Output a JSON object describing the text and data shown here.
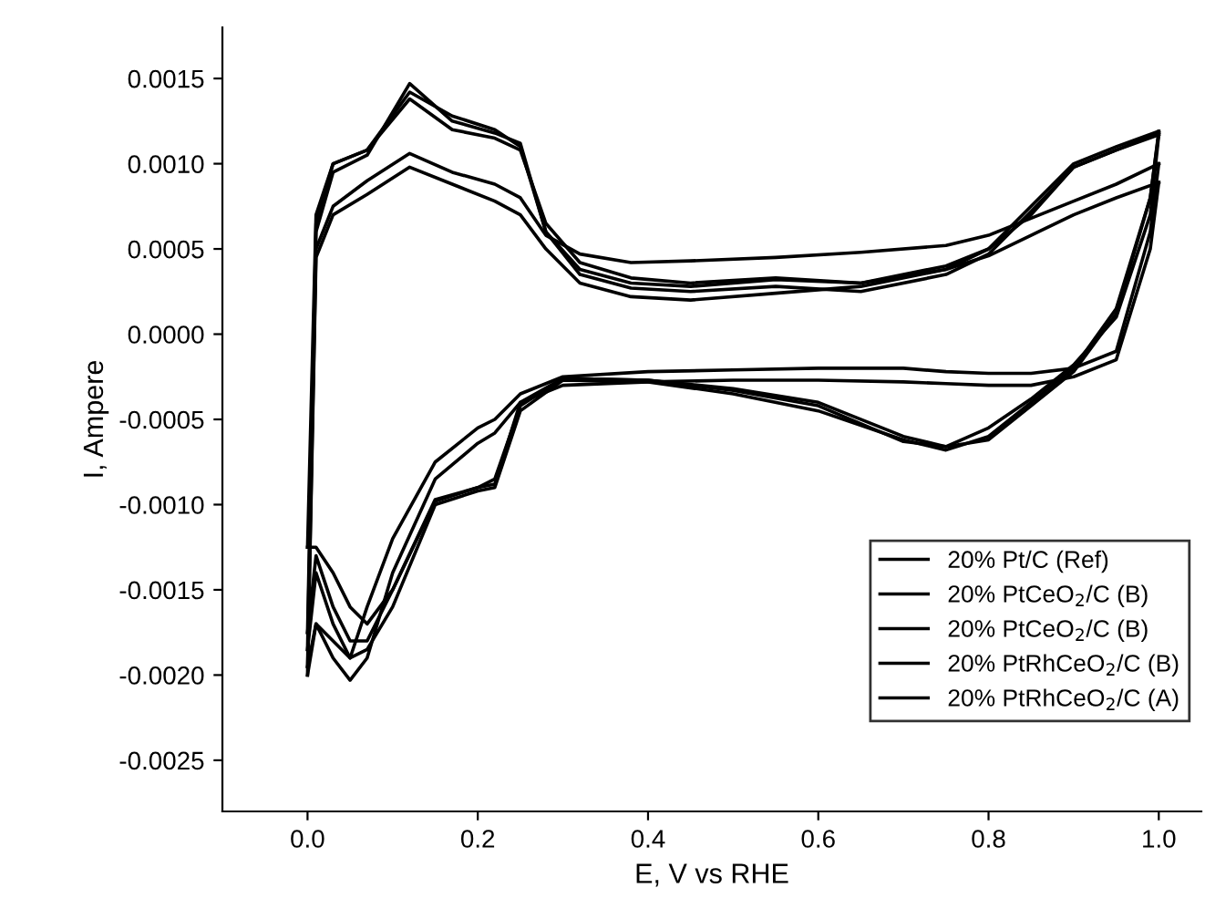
{
  "chart_data": {
    "type": "line",
    "xlabel": "E, V vs RHE",
    "ylabel": "I, Ampere",
    "xlim": [
      -0.1,
      1.05
    ],
    "ylim": [
      -0.0028,
      0.0018
    ],
    "xticks": [
      {
        "value": 0,
        "label": "0.0"
      },
      {
        "value": 0.2,
        "label": "0.2"
      },
      {
        "value": 0.4,
        "label": "0.4"
      },
      {
        "value": 0.6,
        "label": "0.6"
      },
      {
        "value": 0.8,
        "label": "0.8"
      },
      {
        "value": 1.0,
        "label": "1.0"
      }
    ],
    "yticks": [
      {
        "value": -0.0025,
        "label": "-0.0025"
      },
      {
        "value": -0.002,
        "label": "-0.0020"
      },
      {
        "value": -0.0015,
        "label": "-0.0015"
      },
      {
        "value": -0.001,
        "label": "-0.0010"
      },
      {
        "value": -0.0005,
        "label": "-0.0005"
      },
      {
        "value": 0,
        "label": "0.0000"
      },
      {
        "value": 0.0005,
        "label": "0.0005"
      },
      {
        "value": 0.001,
        "label": "0.0010"
      },
      {
        "value": 0.0015,
        "label": "0.0015"
      }
    ],
    "series": [
      {
        "name": "20% Pt/C (Ref)",
        "color": "#000000",
        "x": [
          0.0,
          0.01,
          0.03,
          0.07,
          0.12,
          0.17,
          0.22,
          0.25,
          0.28,
          0.32,
          0.38,
          0.45,
          0.55,
          0.65,
          0.75,
          0.8,
          0.85,
          0.9,
          0.95,
          1.0
        ],
        "values": [
          -0.00185,
          0.0006,
          0.00095,
          0.00105,
          0.00147,
          0.00125,
          0.00118,
          0.00112,
          0.0006,
          0.00035,
          0.00027,
          0.00025,
          0.00028,
          0.00025,
          0.00035,
          0.00047,
          0.00072,
          0.00098,
          0.00108,
          0.00118
        ]
      },
      {
        "color": "#000000",
        "x": [
          0.0,
          0.01,
          0.03,
          0.05,
          0.07,
          0.1,
          0.15,
          0.2,
          0.22,
          0.25,
          0.3,
          0.4,
          0.5,
          0.6,
          0.7,
          0.75,
          0.8,
          0.85,
          0.9,
          0.95,
          0.99,
          1.0
        ],
        "values": [
          -0.00185,
          -0.0014,
          -0.0017,
          -0.0019,
          -0.00185,
          -0.0016,
          -0.001,
          -0.00092,
          -0.0009,
          -0.00045,
          -0.00027,
          -0.00028,
          -0.00035,
          -0.00045,
          -0.00062,
          -0.00068,
          -0.0006,
          -0.0004,
          -0.0002,
          0.00015,
          0.0008,
          0.00118
        ]
      },
      {
        "name": "20% PtCeO$_{2}$/C (B)",
        "color": "#000000",
        "x": [
          0.0,
          0.01,
          0.03,
          0.07,
          0.12,
          0.17,
          0.22,
          0.25,
          0.28,
          0.32,
          0.38,
          0.45,
          0.55,
          0.65,
          0.75,
          0.8,
          0.85,
          0.9,
          0.95,
          1.0
        ],
        "values": [
          -0.00175,
          0.00065,
          0.001,
          0.00108,
          0.00142,
          0.00128,
          0.0012,
          0.0011,
          0.0006,
          0.00038,
          0.0003,
          0.00028,
          0.00032,
          0.0003,
          0.00038,
          0.0005,
          0.00075,
          0.001,
          0.0011,
          0.00119
        ]
      },
      {
        "color": "#000000",
        "x": [
          0.0,
          0.01,
          0.03,
          0.05,
          0.07,
          0.1,
          0.15,
          0.2,
          0.22,
          0.25,
          0.3,
          0.4,
          0.5,
          0.6,
          0.7,
          0.75,
          0.8,
          0.85,
          0.9,
          0.95,
          0.99,
          1.0
        ],
        "values": [
          -0.00175,
          -0.0013,
          -0.0016,
          -0.0018,
          -0.0018,
          -0.0015,
          -0.00098,
          -0.0009,
          -0.00088,
          -0.0004,
          -0.00026,
          -0.00027,
          -0.00032,
          -0.0004,
          -0.0006,
          -0.00066,
          -0.00062,
          -0.00042,
          -0.00022,
          0.00012,
          0.0008,
          0.00119
        ]
      },
      {
        "name": "20% PtCeO$_{2}$/C (B)",
        "color": "#000000",
        "x": [
          0.0,
          0.01,
          0.03,
          0.07,
          0.12,
          0.17,
          0.22,
          0.25,
          0.28,
          0.32,
          0.38,
          0.45,
          0.55,
          0.65,
          0.75,
          0.8,
          0.85,
          0.9,
          0.95,
          1.0
        ],
        "values": [
          -0.00195,
          0.0005,
          0.00075,
          0.0009,
          0.00106,
          0.00095,
          0.00088,
          0.0008,
          0.00058,
          0.00047,
          0.00042,
          0.00043,
          0.00045,
          0.00048,
          0.00052,
          0.00058,
          0.00068,
          0.00078,
          0.00088,
          0.001
        ]
      },
      {
        "color": "#000000",
        "x": [
          0.0,
          0.01,
          0.03,
          0.05,
          0.07,
          0.1,
          0.15,
          0.2,
          0.22,
          0.25,
          0.3,
          0.4,
          0.5,
          0.6,
          0.7,
          0.75,
          0.8,
          0.85,
          0.9,
          0.95,
          0.99,
          1.0
        ],
        "values": [
          -0.00195,
          -0.0017,
          -0.0018,
          -0.0019,
          -0.0016,
          -0.0012,
          -0.00075,
          -0.00055,
          -0.0005,
          -0.00035,
          -0.00025,
          -0.00022,
          -0.00021,
          -0.0002,
          -0.0002,
          -0.00022,
          -0.00023,
          -0.00023,
          -0.0002,
          -0.0001,
          0.0006,
          0.001
        ]
      },
      {
        "name": "20% PtRhCeO$_{2}$/C (B)",
        "color": "#000000",
        "x": [
          0.0,
          0.01,
          0.03,
          0.07,
          0.12,
          0.17,
          0.22,
          0.25,
          0.28,
          0.32,
          0.38,
          0.45,
          0.55,
          0.65,
          0.75,
          0.8,
          0.85,
          0.9,
          0.95,
          1.0
        ],
        "values": [
          -0.002,
          0.00045,
          0.0007,
          0.00082,
          0.00098,
          0.00088,
          0.00078,
          0.0007,
          0.0005,
          0.0003,
          0.00022,
          0.0002,
          0.00024,
          0.00028,
          0.00038,
          0.00046,
          0.00058,
          0.0007,
          0.0008,
          0.00089
        ]
      },
      {
        "color": "#000000",
        "x": [
          0.0,
          0.01,
          0.03,
          0.05,
          0.07,
          0.1,
          0.15,
          0.2,
          0.22,
          0.25,
          0.3,
          0.4,
          0.5,
          0.6,
          0.7,
          0.75,
          0.8,
          0.85,
          0.9,
          0.95,
          0.99,
          1.0
        ],
        "values": [
          -0.002,
          -0.0017,
          -0.0019,
          -0.00203,
          -0.0019,
          -0.0014,
          -0.00085,
          -0.00064,
          -0.00058,
          -0.0004,
          -0.0003,
          -0.00028,
          -0.00027,
          -0.00027,
          -0.00028,
          -0.00029,
          -0.0003,
          -0.0003,
          -0.00025,
          -0.00015,
          0.0005,
          0.00089
        ]
      },
      {
        "name": "20% PtRhCeO$_{2}$/C (A)",
        "color": "#000000",
        "x": [
          0.0,
          0.01,
          0.03,
          0.07,
          0.12,
          0.17,
          0.22,
          0.25,
          0.28,
          0.32,
          0.38,
          0.45,
          0.55,
          0.65,
          0.75,
          0.8,
          0.85,
          0.9,
          0.95,
          1.0
        ],
        "values": [
          -0.00125,
          0.0007,
          0.001,
          0.00108,
          0.00138,
          0.0012,
          0.00115,
          0.00108,
          0.00065,
          0.00042,
          0.00033,
          0.0003,
          0.00033,
          0.0003,
          0.0004,
          0.0005,
          0.0007,
          0.00098,
          0.00108,
          0.00117
        ]
      },
      {
        "color": "#000000",
        "x": [
          0.0,
          0.01,
          0.03,
          0.05,
          0.07,
          0.1,
          0.15,
          0.2,
          0.22,
          0.25,
          0.3,
          0.4,
          0.5,
          0.6,
          0.7,
          0.75,
          0.8,
          0.85,
          0.9,
          0.95,
          0.99,
          1.0
        ],
        "values": [
          -0.00125,
          -0.00125,
          -0.0014,
          -0.0016,
          -0.0017,
          -0.0015,
          -0.00097,
          -0.0009,
          -0.00085,
          -0.00042,
          -0.00026,
          -0.00027,
          -0.00033,
          -0.00042,
          -0.00063,
          -0.00066,
          -0.00055,
          -0.00038,
          -0.00018,
          0.0001,
          0.0007,
          0.00117
        ]
      }
    ],
    "legend": "bottom right",
    "grid": false,
    "marker": "none",
    "line_style": "solid"
  }
}
